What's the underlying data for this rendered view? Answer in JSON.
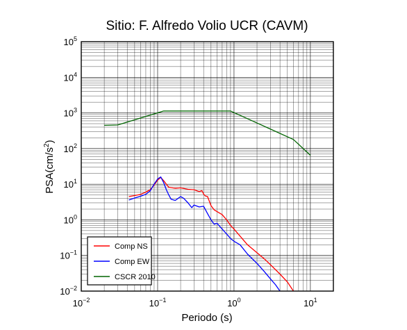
{
  "chart_data": {
    "type": "line",
    "title": "Sitio: F. Alfredo Volio UCR (CAVM)",
    "xlabel": "Periodo (s)",
    "ylabel": {
      "base": "PSA(cm/s",
      "superscript": "2",
      "close": ")"
    },
    "x_scale": "log",
    "y_scale": "log",
    "xlim": [
      0.01,
      20
    ],
    "ylim": [
      0.01,
      100000
    ],
    "grid": true,
    "x_ticks": [
      {
        "base": "10",
        "exp": "−2"
      },
      {
        "base": "10",
        "exp": "−1"
      },
      {
        "base": "10",
        "exp": "0"
      },
      {
        "base": "10",
        "exp": "1"
      }
    ],
    "y_ticks": [
      {
        "base": "10",
        "exp": "−2"
      },
      {
        "base": "10",
        "exp": "−1"
      },
      {
        "base": "10",
        "exp": "0"
      },
      {
        "base": "10",
        "exp": "1"
      },
      {
        "base": "10",
        "exp": "2"
      },
      {
        "base": "10",
        "exp": "3"
      },
      {
        "base": "10",
        "exp": "4"
      },
      {
        "base": "10",
        "exp": "5"
      }
    ],
    "legend_position": "bottom-left",
    "series": [
      {
        "name": "Comp NS",
        "color": "#ff0000",
        "x": [
          0.042,
          0.05,
          0.06,
          0.07,
          0.08,
          0.09,
          0.1,
          0.11,
          0.12,
          0.13,
          0.14,
          0.15,
          0.17,
          0.2,
          0.25,
          0.3,
          0.35,
          0.38,
          0.4,
          0.42,
          0.45,
          0.5,
          0.55,
          0.6,
          0.7,
          0.8,
          0.9,
          1.0,
          1.2,
          1.5,
          2.0,
          2.5,
          3.0,
          4.0,
          5.0,
          6.0
        ],
        "y": [
          4.5,
          4.8,
          5.2,
          6.0,
          7.0,
          9.5,
          13.0,
          15.5,
          12.5,
          10.0,
          8.2,
          8.0,
          7.7,
          7.9,
          7.2,
          7.0,
          6.2,
          6.6,
          5.3,
          4.7,
          4.5,
          2.5,
          1.9,
          1.7,
          1.4,
          1.0,
          0.7,
          0.55,
          0.35,
          0.2,
          0.12,
          0.08,
          0.055,
          0.03,
          0.018,
          0.01
        ]
      },
      {
        "name": "Comp EW",
        "color": "#0000ff",
        "x": [
          0.042,
          0.05,
          0.06,
          0.07,
          0.08,
          0.09,
          0.1,
          0.11,
          0.12,
          0.13,
          0.14,
          0.15,
          0.17,
          0.2,
          0.22,
          0.25,
          0.28,
          0.3,
          0.35,
          0.4,
          0.45,
          0.5,
          0.55,
          0.6,
          0.7,
          0.8,
          0.9,
          1.0,
          1.2,
          1.5,
          2.0,
          2.5,
          3.0,
          3.5,
          4.0
        ],
        "y": [
          3.6,
          4.1,
          4.6,
          5.2,
          6.5,
          10.0,
          14.0,
          16.0,
          11.0,
          7.0,
          5.0,
          3.8,
          3.5,
          4.5,
          4.0,
          3.0,
          2.2,
          2.6,
          2.3,
          2.4,
          1.5,
          1.0,
          0.75,
          0.8,
          0.55,
          0.4,
          0.3,
          0.25,
          0.2,
          0.11,
          0.06,
          0.035,
          0.022,
          0.015,
          0.01
        ]
      },
      {
        "name": "CSCR 2010",
        "color": "#006400",
        "x": [
          0.02,
          0.03,
          0.12,
          0.9,
          6.0,
          10.0
        ],
        "y": [
          450,
          460,
          1130,
          1130,
          180,
          65
        ]
      }
    ]
  }
}
